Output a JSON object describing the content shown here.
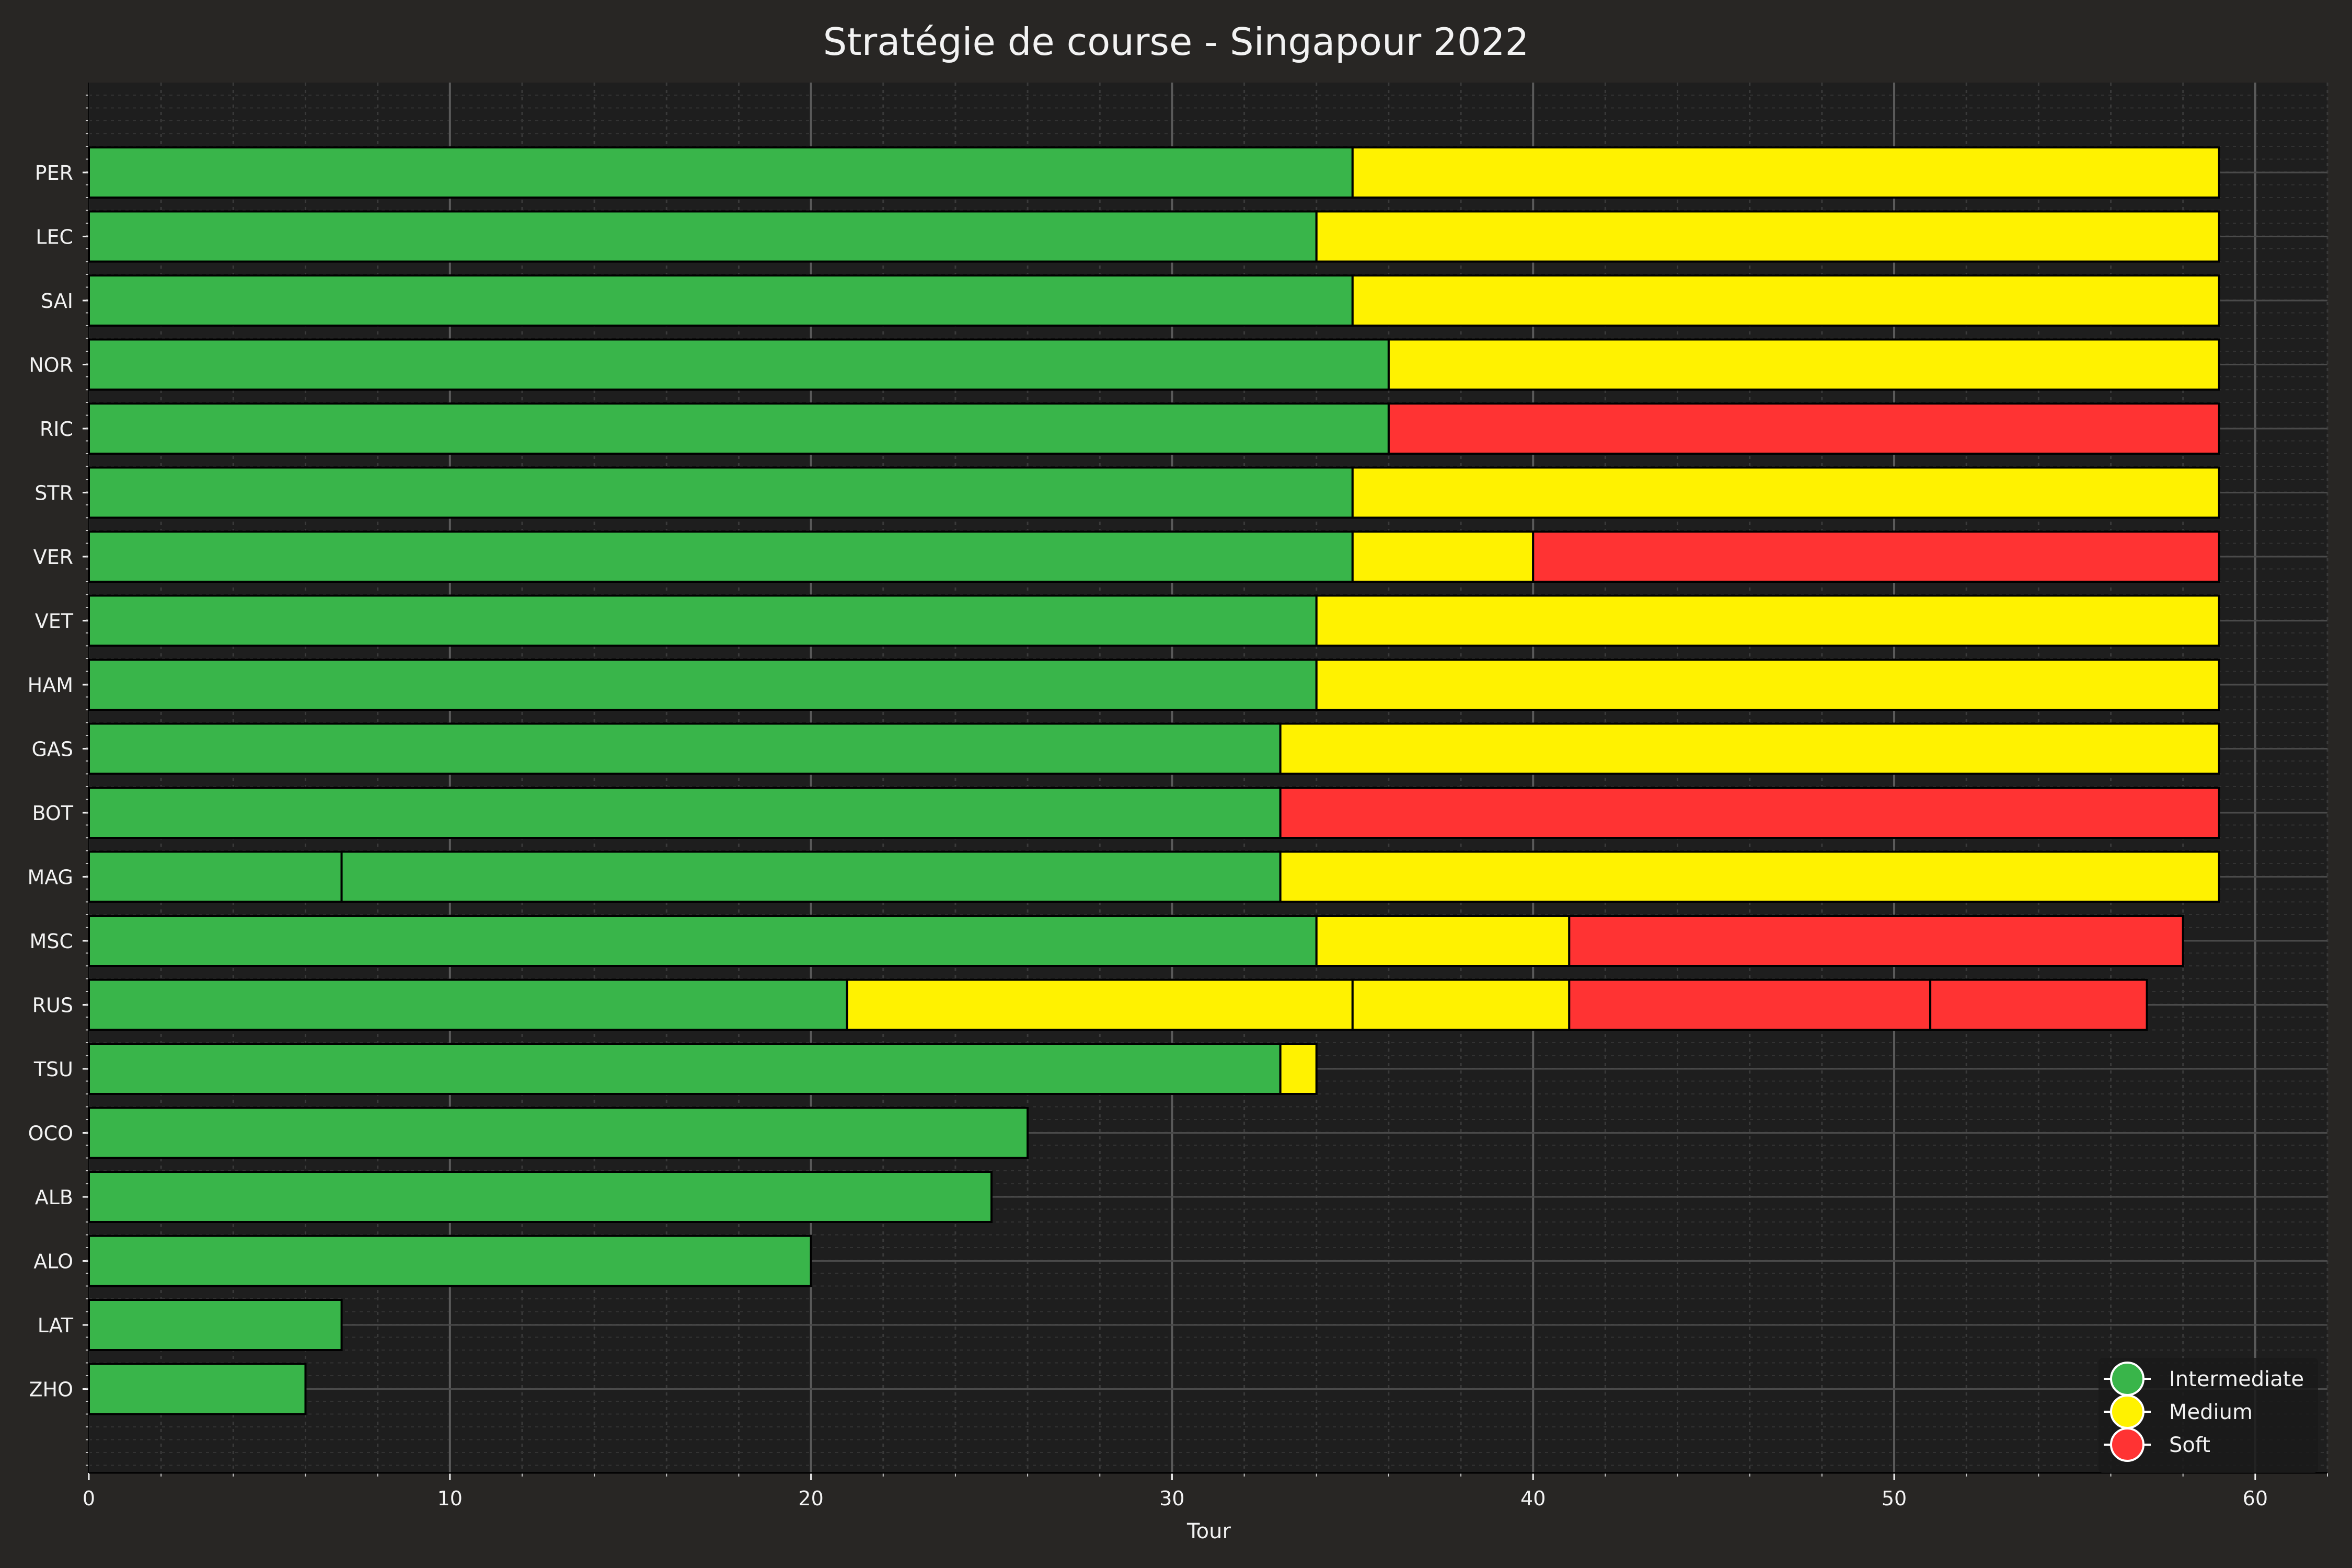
{
  "chart_data": {
    "type": "bar",
    "orientation": "horizontal-stacked",
    "title": "Stratégie de course - Singapour 2022",
    "xlabel": "Tour",
    "ylabel": "",
    "xlim": [
      0,
      62
    ],
    "xticks": [
      0,
      10,
      20,
      30,
      40,
      50,
      60
    ],
    "grid": true,
    "legend_position": "bottom-right",
    "compounds": [
      {
        "name": "Intermediate",
        "color": "#39b54a"
      },
      {
        "name": "Medium",
        "color": "#fff200"
      },
      {
        "name": "Soft",
        "color": "#ff3333"
      }
    ],
    "drivers": [
      {
        "name": "PER",
        "stints": [
          {
            "compound": "Intermediate",
            "start": 0,
            "end": 35
          },
          {
            "compound": "Medium",
            "start": 35,
            "end": 59
          }
        ]
      },
      {
        "name": "LEC",
        "stints": [
          {
            "compound": "Intermediate",
            "start": 0,
            "end": 34
          },
          {
            "compound": "Medium",
            "start": 34,
            "end": 59
          }
        ]
      },
      {
        "name": "SAI",
        "stints": [
          {
            "compound": "Intermediate",
            "start": 0,
            "end": 35
          },
          {
            "compound": "Medium",
            "start": 35,
            "end": 59
          }
        ]
      },
      {
        "name": "NOR",
        "stints": [
          {
            "compound": "Intermediate",
            "start": 0,
            "end": 36
          },
          {
            "compound": "Medium",
            "start": 36,
            "end": 59
          }
        ]
      },
      {
        "name": "RIC",
        "stints": [
          {
            "compound": "Intermediate",
            "start": 0,
            "end": 36
          },
          {
            "compound": "Soft",
            "start": 36,
            "end": 59
          }
        ]
      },
      {
        "name": "STR",
        "stints": [
          {
            "compound": "Intermediate",
            "start": 0,
            "end": 35
          },
          {
            "compound": "Medium",
            "start": 35,
            "end": 59
          }
        ]
      },
      {
        "name": "VER",
        "stints": [
          {
            "compound": "Intermediate",
            "start": 0,
            "end": 35
          },
          {
            "compound": "Medium",
            "start": 35,
            "end": 40
          },
          {
            "compound": "Soft",
            "start": 40,
            "end": 59
          }
        ]
      },
      {
        "name": "VET",
        "stints": [
          {
            "compound": "Intermediate",
            "start": 0,
            "end": 34
          },
          {
            "compound": "Medium",
            "start": 34,
            "end": 59
          }
        ]
      },
      {
        "name": "HAM",
        "stints": [
          {
            "compound": "Intermediate",
            "start": 0,
            "end": 34
          },
          {
            "compound": "Medium",
            "start": 34,
            "end": 59
          }
        ]
      },
      {
        "name": "GAS",
        "stints": [
          {
            "compound": "Intermediate",
            "start": 0,
            "end": 33
          },
          {
            "compound": "Medium",
            "start": 33,
            "end": 59
          }
        ]
      },
      {
        "name": "BOT",
        "stints": [
          {
            "compound": "Intermediate",
            "start": 0,
            "end": 33
          },
          {
            "compound": "Soft",
            "start": 33,
            "end": 59
          }
        ]
      },
      {
        "name": "MAG",
        "stints": [
          {
            "compound": "Intermediate",
            "start": 0,
            "end": 7
          },
          {
            "compound": "Intermediate",
            "start": 7,
            "end": 33
          },
          {
            "compound": "Medium",
            "start": 33,
            "end": 59
          }
        ]
      },
      {
        "name": "MSC",
        "stints": [
          {
            "compound": "Intermediate",
            "start": 0,
            "end": 34
          },
          {
            "compound": "Medium",
            "start": 34,
            "end": 41
          },
          {
            "compound": "Soft",
            "start": 41,
            "end": 58
          }
        ]
      },
      {
        "name": "RUS",
        "stints": [
          {
            "compound": "Intermediate",
            "start": 0,
            "end": 21
          },
          {
            "compound": "Medium",
            "start": 21,
            "end": 35
          },
          {
            "compound": "Medium",
            "start": 35,
            "end": 41
          },
          {
            "compound": "Soft",
            "start": 41,
            "end": 51
          },
          {
            "compound": "Soft",
            "start": 51,
            "end": 57
          }
        ]
      },
      {
        "name": "TSU",
        "stints": [
          {
            "compound": "Intermediate",
            "start": 0,
            "end": 33
          },
          {
            "compound": "Medium",
            "start": 33,
            "end": 34
          }
        ]
      },
      {
        "name": "OCO",
        "stints": [
          {
            "compound": "Intermediate",
            "start": 0,
            "end": 26
          }
        ]
      },
      {
        "name": "ALB",
        "stints": [
          {
            "compound": "Intermediate",
            "start": 0,
            "end": 25
          }
        ]
      },
      {
        "name": "ALO",
        "stints": [
          {
            "compound": "Intermediate",
            "start": 0,
            "end": 20
          }
        ]
      },
      {
        "name": "LAT",
        "stints": [
          {
            "compound": "Intermediate",
            "start": 0,
            "end": 7
          }
        ]
      },
      {
        "name": "ZHO",
        "stints": [
          {
            "compound": "Intermediate",
            "start": 0,
            "end": 6
          }
        ]
      }
    ]
  }
}
